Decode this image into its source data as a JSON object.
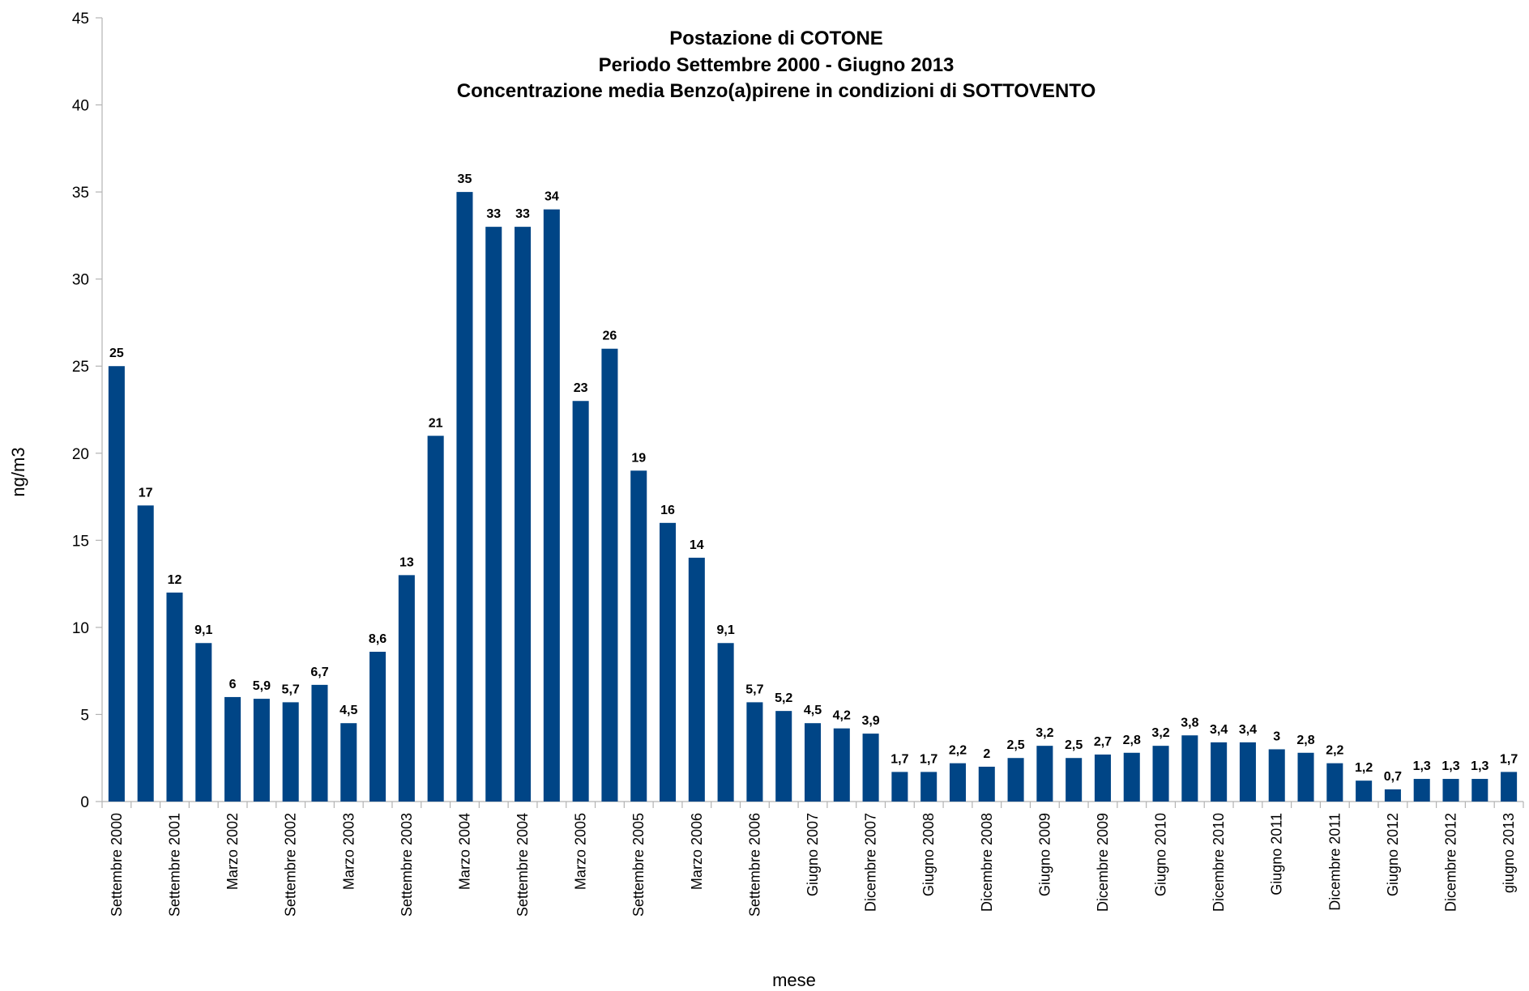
{
  "chart_data": {
    "type": "bar",
    "title_lines": [
      "Postazione di COTONE",
      "Periodo Settembre 2000 - Giugno 2013",
      "Concentrazione media Benzo(a)pirene in condizioni di SOTTOVENTO"
    ],
    "xlabel": "mese",
    "ylabel": "ng/m3",
    "ylim": [
      0,
      45
    ],
    "yticks": [
      0,
      5,
      10,
      15,
      20,
      25,
      30,
      35,
      40,
      45
    ],
    "grid": false,
    "legend": "none",
    "bar_color": "#004586",
    "values": [
      25,
      17,
      12,
      9.1,
      6,
      5.9,
      5.7,
      6.7,
      4.5,
      8.6,
      13,
      21,
      35,
      33,
      33,
      34,
      23,
      26,
      19,
      16,
      14,
      9.1,
      5.7,
      5.2,
      4.5,
      4.2,
      3.9,
      1.7,
      1.7,
      2.2,
      2,
      2.5,
      3.2,
      2.5,
      2.7,
      2.8,
      3.2,
      3.8,
      3.4,
      3.4,
      3,
      2.8,
      2.2,
      1.2,
      0.7,
      1.3,
      1.3,
      1.3,
      1.7
    ],
    "value_labels": [
      "25",
      "17",
      "12",
      "9,1",
      "6",
      "5,9",
      "5,7",
      "6,7",
      "4,5",
      "8,6",
      "13",
      "21",
      "35",
      "33",
      "33",
      "34",
      "23",
      "26",
      "19",
      "16",
      "14",
      "9,1",
      "5,7",
      "5,2",
      "4,5",
      "4,2",
      "3,9",
      "1,7",
      "1,7",
      "2,2",
      "2",
      "2,5",
      "3,2",
      "2,5",
      "2,7",
      "2,8",
      "3,2",
      "3,8",
      "3,4",
      "3,4",
      "3",
      "2,8",
      "2,2",
      "1,2",
      "0,7",
      "1,3",
      "1,3",
      "1,3",
      "1,7"
    ],
    "categories": [
      "Settembre 2000",
      "",
      "Settembre 2001",
      "",
      "Marzo 2002",
      "",
      "Settembre 2002",
      "",
      "Marzo 2003",
      "",
      "Settembre 2003",
      "",
      "Marzo 2004",
      "",
      "Settembre 2004",
      "",
      "Marzo 2005",
      "",
      "Settembre 2005",
      "",
      "Marzo 2006",
      "",
      "Settembre 2006",
      "",
      "Giugno 2007",
      "",
      "Dicembre 2007",
      "",
      "Giugno 2008",
      "",
      "Dicembre 2008",
      "",
      "Giugno 2009",
      "",
      "Dicembre 2009",
      "",
      "Giugno 2010",
      "",
      "Dicembre 2010",
      "",
      "Giugno 2011",
      "",
      "Dicembre 2011",
      "",
      "Giugno 2012",
      "",
      "Dicembre 2012",
      "",
      "giugno 2013"
    ]
  }
}
